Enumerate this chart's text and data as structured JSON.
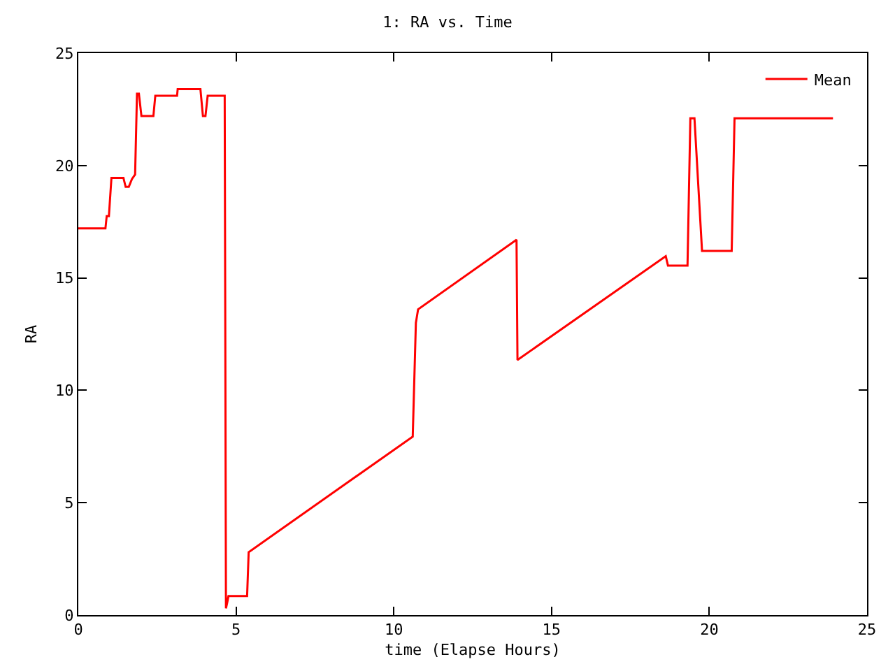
{
  "chart_data": {
    "type": "line",
    "title": "1: RA vs. Time",
    "xlabel": "time (Elapse Hours)",
    "ylabel": "RA",
    "xlim": [
      0,
      25
    ],
    "xticks": [
      0,
      5,
      10,
      15,
      20,
      25
    ],
    "ylim": [
      0,
      25
    ],
    "yticks": [
      0,
      5,
      10,
      15,
      20,
      25
    ],
    "grid": false,
    "legend": "top right",
    "marker": "none",
    "line_style": "solid",
    "series": [
      {
        "name": "Mean",
        "color": "#ff0000",
        "x": [
          0,
          0.86,
          0.9,
          0.97,
          1.05,
          1.43,
          1.5,
          1.6,
          1.7,
          1.8,
          1.86,
          1.92,
          2.0,
          2.38,
          2.44,
          3.13,
          3.15,
          3.87,
          3.95,
          4.03,
          4.1,
          4.64,
          4.66,
          4.68,
          4.72,
          4.76,
          5.35,
          5.4,
          10.6,
          10.7,
          10.77,
          13.89,
          13.92,
          18.62,
          18.69,
          19.31,
          19.4,
          19.53,
          19.77,
          20.71,
          20.8,
          23.92
        ],
        "values": [
          17.2,
          17.2,
          17.75,
          17.75,
          19.45,
          19.45,
          19.05,
          19.05,
          19.4,
          19.6,
          23.2,
          23.2,
          22.2,
          22.2,
          23.1,
          23.1,
          23.4,
          23.4,
          22.2,
          22.2,
          23.1,
          23.1,
          11.8,
          0.3,
          0.55,
          0.85,
          0.85,
          2.8,
          7.94,
          13.0,
          13.6,
          16.7,
          11.35,
          15.97,
          15.55,
          15.55,
          22.1,
          22.1,
          16.2,
          16.2,
          22.1,
          22.1
        ]
      }
    ]
  }
}
